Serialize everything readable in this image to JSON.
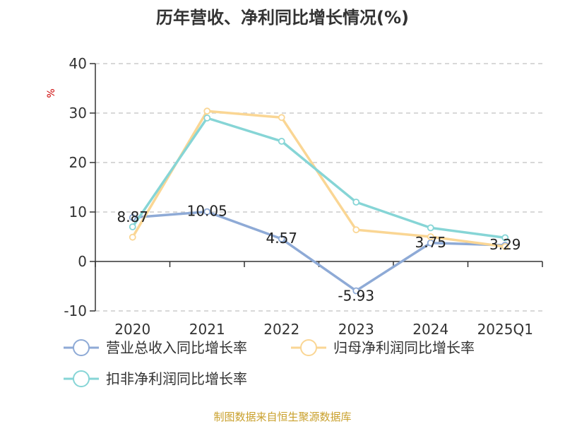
{
  "chart_data": {
    "type": "line",
    "title": "历年营收、净利同比增长情况(%)",
    "ylabel": "%",
    "categories": [
      "2020",
      "2021",
      "2022",
      "2023",
      "2024",
      "2025Q1"
    ],
    "ylim": [
      -10,
      40
    ],
    "yticks": [
      -10,
      0,
      10,
      20,
      30,
      40
    ],
    "grid": true,
    "legend_position": "bottom",
    "series": [
      {
        "name": "营业总收入同比增长率",
        "color": "#8eaad6",
        "values": [
          8.87,
          10.05,
          4.57,
          -5.93,
          3.75,
          3.29
        ],
        "labels": [
          "8.87",
          "10.05",
          "4.57",
          "-5.93",
          "3.75",
          "3.29"
        ]
      },
      {
        "name": "归母净利润同比增长率",
        "color": "#fad694",
        "values": [
          4.9,
          30.4,
          29.1,
          6.4,
          5.0,
          3.0
        ]
      },
      {
        "name": "扣非净利润同比增长率",
        "color": "#86d5d6",
        "values": [
          7.0,
          29.0,
          24.3,
          12.0,
          6.8,
          4.8
        ]
      }
    ]
  },
  "source_text": "制图数据来自恒生聚源数据库",
  "colors": {
    "axis": "#333333",
    "grid": "#cccccc",
    "unit": "#cc0000",
    "source": "#c9a02c"
  }
}
